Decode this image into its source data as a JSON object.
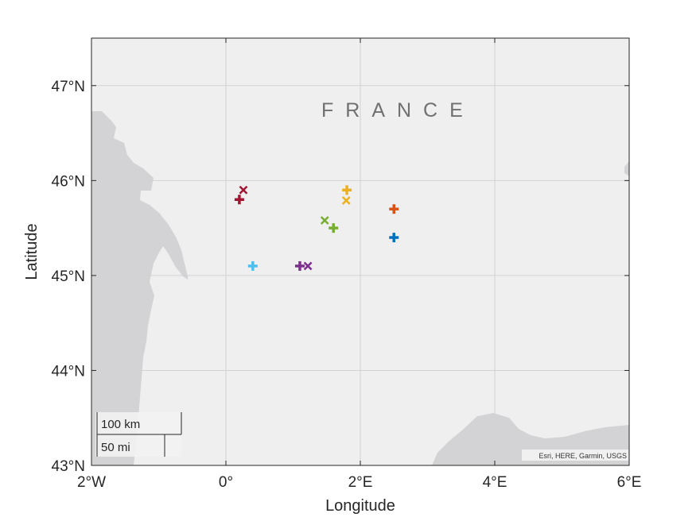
{
  "axes": {
    "xlabel": "Longitude",
    "ylabel": "Latitude",
    "xlim": [
      -2,
      6
    ],
    "ylim": [
      43,
      47.5
    ],
    "xticks": [
      {
        "value": -2,
        "label": "2°W"
      },
      {
        "value": 0,
        "label": "0°"
      },
      {
        "value": 2,
        "label": "2°E"
      },
      {
        "value": 4,
        "label": "4°E"
      },
      {
        "value": 6,
        "label": "6°E"
      }
    ],
    "yticks": [
      {
        "value": 43,
        "label": "43°N"
      },
      {
        "value": 44,
        "label": "44°N"
      },
      {
        "value": 45,
        "label": "45°N"
      },
      {
        "value": 46,
        "label": "46°N"
      },
      {
        "value": 47,
        "label": "47°N"
      }
    ],
    "grid": true
  },
  "map": {
    "country_label": "FRANCE",
    "attribution": "Esri, HERE, Garmin, USGS",
    "scalebar": {
      "km_label": "100 km",
      "mi_label": "50 mi"
    },
    "colors": {
      "land": "#efefef",
      "water": "#d3d3d6",
      "grid": "#d2d2d2"
    }
  },
  "chart_data": {
    "type": "scatter",
    "title": "",
    "xlabel": "Longitude",
    "ylabel": "Latitude",
    "xlim": [
      -2,
      6
    ],
    "ylim": [
      43,
      47.5
    ],
    "points": [
      {
        "lon": 0.2,
        "lat": 45.8,
        "marker": "plus",
        "color": "#a2142f"
      },
      {
        "lon": 0.26,
        "lat": 45.9,
        "marker": "x",
        "color": "#a2142f"
      },
      {
        "lon": 1.8,
        "lat": 45.9,
        "marker": "plus",
        "color": "#edb120"
      },
      {
        "lon": 1.79,
        "lat": 45.79,
        "marker": "x",
        "color": "#edb120"
      },
      {
        "lon": 2.5,
        "lat": 45.7,
        "marker": "plus",
        "color": "#d95319"
      },
      {
        "lon": 1.6,
        "lat": 45.5,
        "marker": "plus",
        "color": "#77ac30"
      },
      {
        "lon": 1.47,
        "lat": 45.58,
        "marker": "x",
        "color": "#77ac30"
      },
      {
        "lon": 2.5,
        "lat": 45.4,
        "marker": "plus",
        "color": "#0072bd"
      },
      {
        "lon": 0.4,
        "lat": 45.1,
        "marker": "plus",
        "color": "#4dbeee"
      },
      {
        "lon": 1.1,
        "lat": 45.1,
        "marker": "plus",
        "color": "#7e2f8e"
      },
      {
        "lon": 1.22,
        "lat": 45.1,
        "marker": "x",
        "color": "#7e2f8e"
      }
    ]
  }
}
